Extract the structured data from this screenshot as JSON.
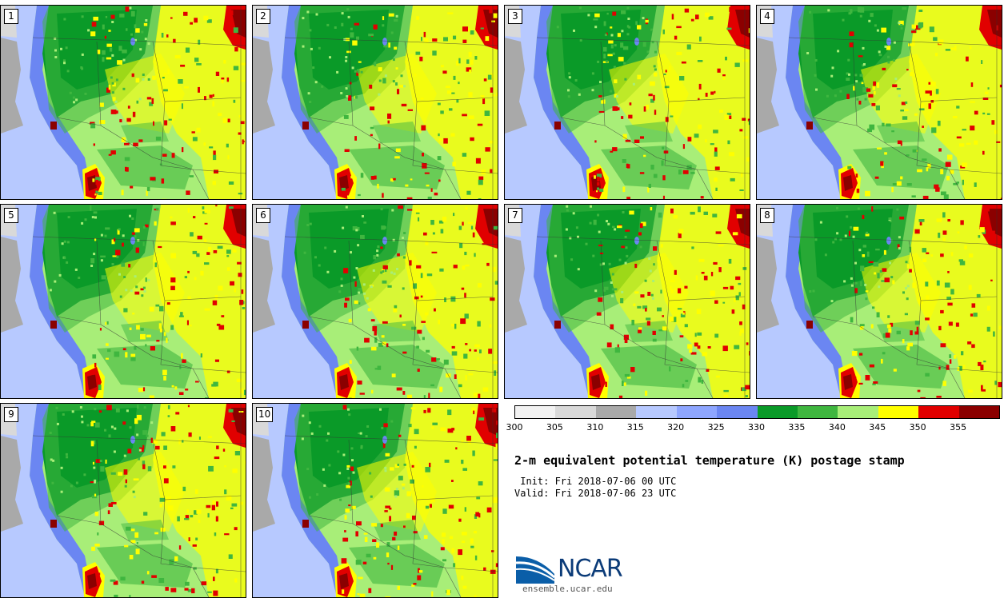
{
  "title": "2-m equivalent potential temperature (K) postage stamp",
  "init": " Init: Fri 2018-07-06 00 UTC",
  "valid": "Valid: Fri 2018-07-06 23 UTC",
  "logo_text": "NCAR",
  "logo_url": "ensemble.ucar.edu",
  "members": [
    "1",
    "2",
    "3",
    "4",
    "5",
    "6",
    "7",
    "8",
    "9",
    "10"
  ],
  "colorbar": {
    "colors": [
      "#f2f2f2",
      "#d9d9d9",
      "#a9a9a9",
      "#b7c9ff",
      "#8ea6ff",
      "#6b86f2",
      "#0a9a28",
      "#3fb63f",
      "#a8ee78",
      "#ffff00",
      "#e10000",
      "#8b0000"
    ],
    "ticks": [
      "300",
      "305",
      "310",
      "315",
      "320",
      "325",
      "330",
      "335",
      "340",
      "345",
      "350",
      "355"
    ]
  }
}
